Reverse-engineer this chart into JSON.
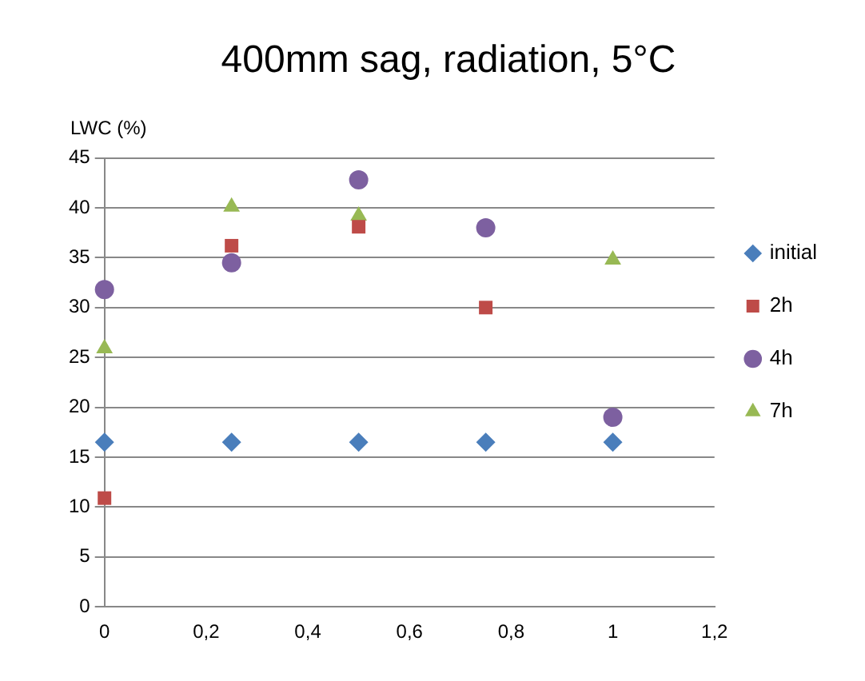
{
  "chart_data": {
    "type": "scatter",
    "title": "400mm sag, radiation, 5°C",
    "ylabel": "LWC (%)",
    "xlim": [
      0,
      1.2
    ],
    "xticks": [
      0,
      {
        "value": 0.2,
        "label": "0,2"
      },
      {
        "value": 0.4,
        "label": "0,4"
      },
      {
        "value": 0.6,
        "label": "0,6"
      },
      {
        "value": 0.8,
        "label": "0,8"
      },
      1,
      {
        "value": 1.2,
        "label": "1,2"
      }
    ],
    "ylim": [
      0,
      45
    ],
    "yticks": [
      0,
      5,
      10,
      15,
      20,
      25,
      30,
      35,
      40,
      45
    ],
    "grid": "y",
    "legend": "right",
    "series": [
      {
        "name": "initial",
        "color": "#4a7ebb",
        "marker": "diamond",
        "x": [
          0,
          0.25,
          0.5,
          0.75,
          1
        ],
        "values": [
          16.5,
          16.5,
          16.5,
          16.5,
          16.5
        ]
      },
      {
        "name": "2h",
        "color": "#be4b48",
        "marker": "square",
        "x": [
          0,
          0.25,
          0.5,
          0.75
        ],
        "values": [
          10.9,
          36.2,
          38.1,
          30
        ]
      },
      {
        "name": "4h",
        "color": "#7d60a0",
        "marker": "circle",
        "x": [
          0,
          0.25,
          0.5,
          0.75,
          1
        ],
        "values": [
          31.8,
          34.5,
          42.8,
          38,
          19
        ]
      },
      {
        "name": "7h",
        "color": "#98b954",
        "marker": "triangle",
        "x": [
          0,
          0.25,
          0.5,
          1
        ],
        "values": [
          25.9,
          40.1,
          39.2,
          34.8
        ]
      }
    ]
  }
}
